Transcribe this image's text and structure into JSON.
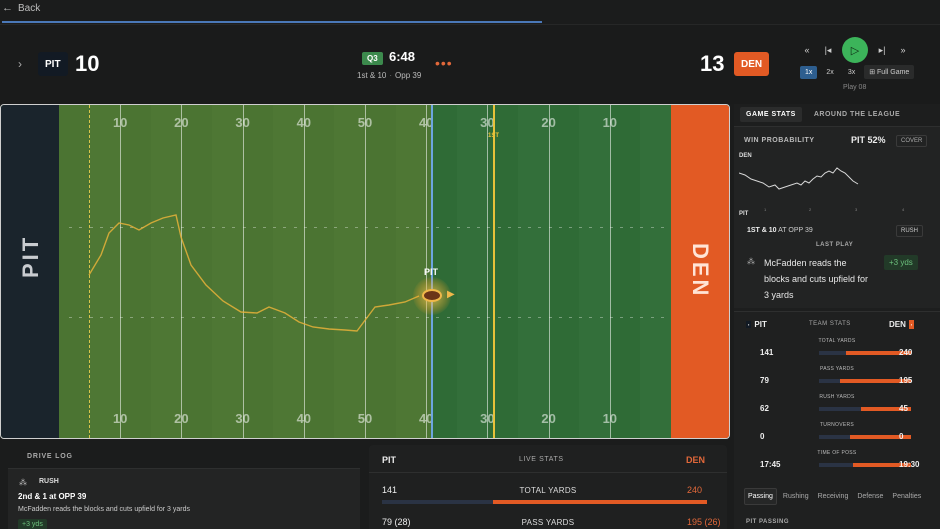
{
  "nav": {
    "back_label": "Back"
  },
  "scoreboard": {
    "home_abbr": "PIT",
    "home_score": "10",
    "away_abbr": "DEN",
    "away_score": "13",
    "quarter": "Q3",
    "clock": "6:48",
    "down_distance": "1st & 10",
    "field_position": "Opp 39",
    "menu": "•••"
  },
  "playback": {
    "speeds": [
      "1x",
      "2x",
      "3x"
    ],
    "active_speed": "1x",
    "full_game_label": "Full Game",
    "play_label": "Play 08",
    "colors": {
      "play_button": "#3cb45a"
    }
  },
  "field": {
    "left_endzone": "PIT",
    "right_endzone": "DEN",
    "yard_numbers": [
      "10",
      "20",
      "30",
      "40",
      "50",
      "40",
      "30",
      "20",
      "10"
    ],
    "first_down_label": "1ST",
    "ball_carrier_team": "PIT",
    "line_of_scrimmage_yardline": 39,
    "first_down_yardline": 29,
    "colors": {
      "turf": "#2f6b36",
      "home_endzone": "#1a242c",
      "away_endzone": "#e25a24",
      "line_of_scrimmage": "#6da5e0",
      "first_down": "#e8c23a"
    }
  },
  "right_panel": {
    "tabs": [
      "GAME STATS",
      "AROUND THE LEAGUE"
    ],
    "win_prob": {
      "title": "WIN PROBABILITY",
      "value": "PIT 52%",
      "cover_label": "COVER",
      "top_team": "DEN",
      "bottom_team": "PIT",
      "x_ticks": [
        "1",
        "2",
        "3",
        "4"
      ]
    },
    "situation": {
      "down": "1ST & 10",
      "rest": "AT OPP 39",
      "tag": "RUSH"
    },
    "last_play": {
      "header": "LAST PLAY",
      "text": "McFadden reads the blocks and cuts upfield for 3 yards",
      "yards": "+3 yds"
    },
    "team_stats": {
      "home": "PIT",
      "title": "TEAM STATS",
      "away": "DEN",
      "rows": [
        {
          "label": "TOTAL YARDS",
          "home": "141",
          "away": "240",
          "home_value": 141,
          "away_value": 240
        },
        {
          "label": "PASS YARDS",
          "home": "79",
          "away": "195",
          "home_value": 79,
          "away_value": 195
        },
        {
          "label": "RUSH YARDS",
          "home": "62",
          "away": "45",
          "home_value": 62,
          "away_value": 45
        },
        {
          "label": "TURNOVERS",
          "home": "0",
          "away": "0",
          "home_value": 0,
          "away_value": 0
        },
        {
          "label": "TIME OF POSS",
          "home": "17:45",
          "away": "19:30",
          "home_value": 1065,
          "away_value": 1170
        }
      ]
    },
    "subtabs": [
      "Passing",
      "Rushing",
      "Receiving",
      "Defense",
      "Penalties"
    ],
    "active_subtab": "Passing",
    "passing_header": "PIT PASSING"
  },
  "drive_log": {
    "title": "DRIVE LOG",
    "entry": {
      "type": "RUSH",
      "down": "2nd & 1 at OPP 39",
      "desc": "McFadden reads the blocks and cuts upfield for 3 yards",
      "yards": "+3 yds"
    }
  },
  "live_stats": {
    "home": "PIT",
    "title": "LIVE STATS",
    "away": "DEN",
    "rows": [
      {
        "label": "TOTAL YARDS",
        "home": "141",
        "away": "240",
        "home_value": 141,
        "away_value": 240
      },
      {
        "label": "PASS YARDS",
        "home": "79 (28)",
        "away": "195 (26)",
        "home_value": 79,
        "away_value": 195
      }
    ]
  }
}
